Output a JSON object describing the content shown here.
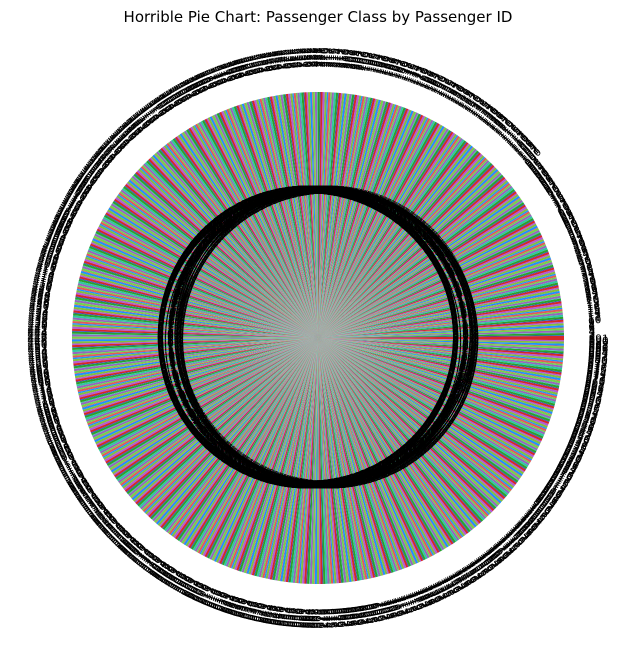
{
  "chart_data": {
    "type": "pie",
    "title": "Horrible Pie Chart: Passenger Class by Passenger ID",
    "slice_count": 891,
    "start_id": 1,
    "values_pattern": [
      3,
      1,
      3,
      1,
      3,
      3,
      1,
      3,
      3,
      2,
      3,
      1,
      3,
      3,
      3,
      2,
      3,
      2,
      3,
      3
    ],
    "slice_colors": [
      "#d62728",
      "#1f3fd6",
      "#2ca02c",
      "#31c8a0",
      "#9467bd",
      "#6fd64a",
      "#e05a5a",
      "#1e90ff",
      "#7fbf3f",
      "#b15bd6"
    ],
    "labels_visible": true,
    "autopct_visible": true,
    "xlabel": "",
    "ylabel": ""
  }
}
